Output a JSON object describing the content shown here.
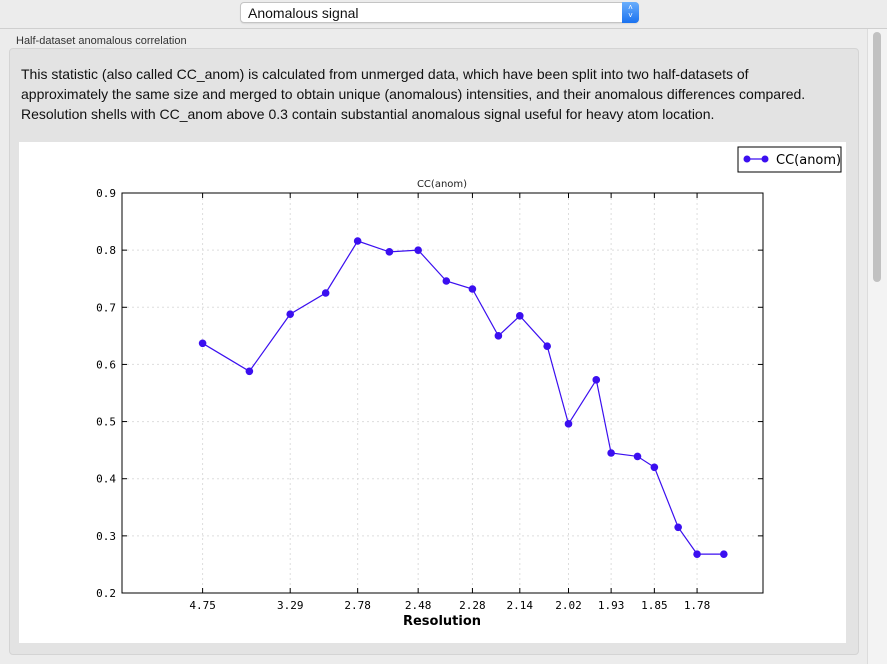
{
  "toolbar": {
    "selected_view": "Anomalous signal",
    "select_icon": "up-down-chevron-icon"
  },
  "section": {
    "title": "Half-dataset anomalous correlation",
    "description": "This statistic (also called CC_anom) is calculated from unmerged data, which have been split into two half-datasets of approximately the same size and merged to obtain unique (anomalous) intensities, and their anomalous differences compared.  Resolution shells with CC_anom above 0.3 contain substantial anomalous signal useful for heavy atom location."
  },
  "chart_data": {
    "type": "line",
    "title": "CC(anom)",
    "xlabel": "Resolution",
    "ylabel": "",
    "x_scale": "reciprocal-square (1/d^2), labeled as resolution d",
    "xlim": [
      100,
      1.686
    ],
    "ylim": [
      0.2,
      0.9
    ],
    "yticks": [
      "0.2",
      "0.3",
      "0.4",
      "0.5",
      "0.6",
      "0.7",
      "0.8",
      "0.9"
    ],
    "xticks": [
      "4.75",
      "3.29",
      "2.78",
      "2.48",
      "2.28",
      "2.14",
      "2.02",
      "1.93",
      "1.85",
      "1.78"
    ],
    "grid": true,
    "legend_position": "top-right",
    "series": [
      {
        "name": "CC(anom)",
        "color": "#3b0ff0",
        "marker": "circle",
        "x": [
          4.75,
          3.78,
          3.29,
          2.99,
          2.78,
          2.61,
          2.48,
          2.37,
          2.28,
          2.2,
          2.14,
          2.07,
          2.02,
          1.96,
          1.93,
          1.88,
          1.85,
          1.81,
          1.78,
          1.74
        ],
        "values": [
          0.637,
          0.588,
          0.688,
          0.725,
          0.816,
          0.797,
          0.8,
          0.746,
          0.732,
          0.65,
          0.685,
          0.632,
          0.496,
          0.573,
          0.445,
          0.439,
          0.42,
          0.315,
          0.268,
          0.268
        ]
      }
    ]
  }
}
